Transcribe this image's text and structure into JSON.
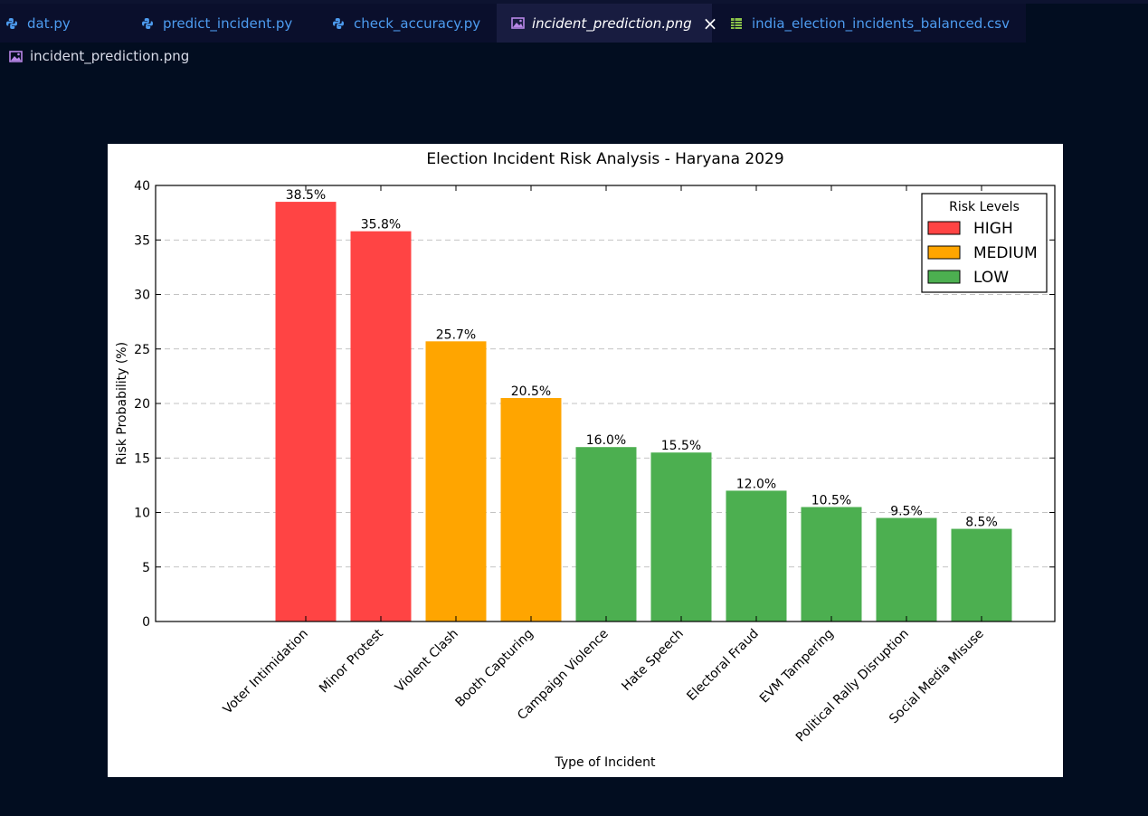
{
  "tabs": [
    {
      "label": "dat.py",
      "kind": "python"
    },
    {
      "label": "predict_incident.py",
      "kind": "python"
    },
    {
      "label": "check_accuracy.py",
      "kind": "python"
    },
    {
      "label": "incident_prediction.png",
      "kind": "image",
      "active": true
    },
    {
      "label": "india_election_incidents_balanced.csv",
      "kind": "csv"
    }
  ],
  "breadcrumb": {
    "label": "incident_prediction.png",
    "icon": "image-icon"
  },
  "colors": {
    "high": "#ff4444",
    "medium": "#ffa500",
    "low": "#4caf50"
  },
  "chart_data": {
    "type": "bar",
    "title": "Election Incident Risk Analysis - Haryana 2029",
    "xlabel": "Type of Incident",
    "ylabel": "Risk Probability (%)",
    "ylim": [
      0,
      40
    ],
    "yticks": [
      0,
      5,
      10,
      15,
      20,
      25,
      30,
      35,
      40
    ],
    "grid": "horizontal dashed",
    "categories": [
      "Voter Intimidation",
      "Minor Protest",
      "Violent Clash",
      "Booth Capturing",
      "Campaign Violence",
      "Hate Speech",
      "Electoral Fraud",
      "EVM Tampering",
      "Political Rally Disruption",
      "Social Media Misuse"
    ],
    "values": [
      38.5,
      35.8,
      25.7,
      20.5,
      16.0,
      15.5,
      12.0,
      10.5,
      9.5,
      8.5
    ],
    "value_labels": [
      "38.5%",
      "35.8%",
      "25.7%",
      "20.5%",
      "16.0%",
      "15.5%",
      "12.0%",
      "10.5%",
      "9.5%",
      "8.5%"
    ],
    "risk": [
      "HIGH",
      "HIGH",
      "MEDIUM",
      "MEDIUM",
      "LOW",
      "LOW",
      "LOW",
      "LOW",
      "LOW",
      "LOW"
    ],
    "legend": {
      "title": "Risk Levels",
      "placement": "top-right",
      "entries": [
        {
          "label": "HIGH",
          "color": "#ff4444"
        },
        {
          "label": "MEDIUM",
          "color": "#ffa500"
        },
        {
          "label": "LOW",
          "color": "#4caf50"
        }
      ]
    }
  }
}
